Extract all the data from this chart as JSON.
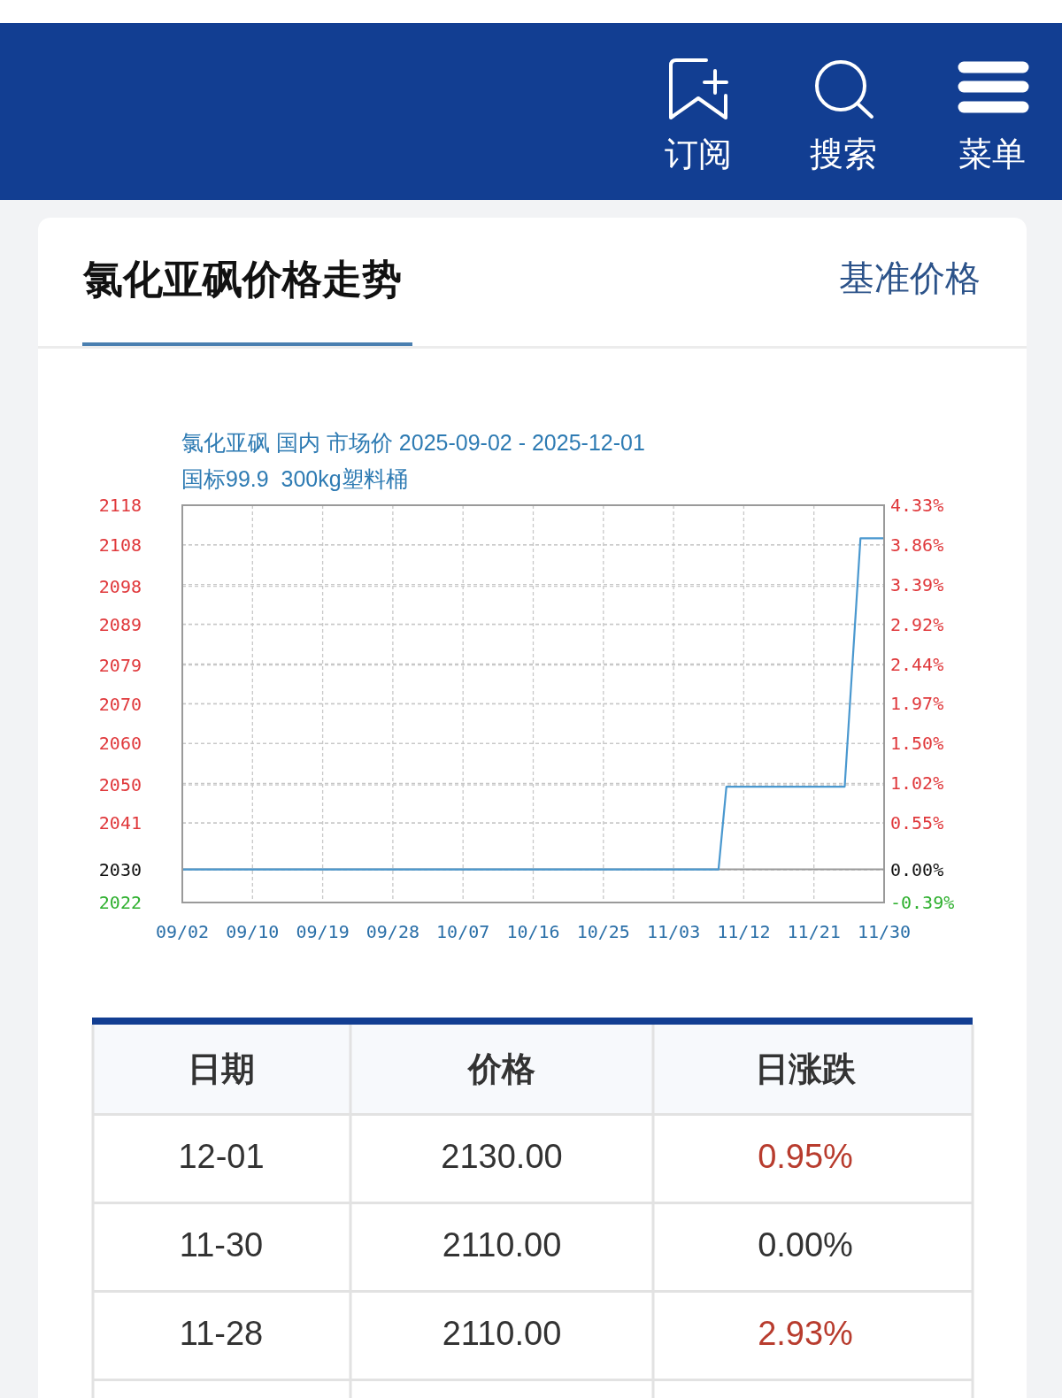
{
  "chart_data": [
    {
      "type": "line",
      "title": "氯化亚砜价格走势",
      "subtitle": "氯化亚砜 国内 市场价 2025-09-02 - 2025-12-01",
      "annotations": [
        "国标99.9  300kg塑料桶",
        "基准价格",
        "订阅",
        "搜索",
        "菜单"
      ],
      "x": [
        "2025-09-02",
        "2025-11-09",
        "2025-11-10",
        "2025-11-25",
        "2025-11-27",
        "2025-11-30"
      ],
      "values": [
        2030,
        2030,
        2050,
        2050,
        2110,
        2110
      ],
      "color": "#4a98cf",
      "xlim": [
        "2025-09-02",
        "2025-11-30"
      ],
      "xticks": [
        {
          "value": "2025-09-02",
          "label": "09/02"
        },
        {
          "value": "2025-09-10T21:36",
          "label": "09/10"
        },
        {
          "value": "2025-09-19T19:12",
          "label": "09/19"
        },
        {
          "value": "2025-09-28T16:48",
          "label": "09/28"
        },
        {
          "value": "2025-10-07T14:24",
          "label": "10/07"
        },
        {
          "value": "2025-10-16T12:00",
          "label": "10/16"
        },
        {
          "value": "2025-10-25T09:36",
          "label": "10/25"
        },
        {
          "value": "2025-11-03T07:12",
          "label": "11/03"
        },
        {
          "value": "2025-11-12T04:48",
          "label": "11/12"
        },
        {
          "value": "2025-11-21T02:24",
          "label": "11/21"
        },
        {
          "value": "2025-11-30",
          "label": "11/30"
        }
      ],
      "ylim": [
        2022,
        2118
      ],
      "yticks": [
        2022,
        2030,
        {
          "value": 2041.2,
          "label": "2041"
        },
        {
          "value": 2050.4,
          "label": "2050"
        },
        {
          "value": 2060.4,
          "label": "2060"
        },
        2070,
        {
          "value": 2079.4,
          "label": "2079"
        },
        {
          "value": 2089.2,
          "label": "2089"
        },
        {
          "value": 2098.4,
          "label": "2098"
        },
        {
          "value": 2108.4,
          "label": "2108"
        },
        2118
      ],
      "y2lim": [
        -0.39,
        4.33
      ],
      "y2ticks": [
        {
          "value": -0.39,
          "label": "-0.39%"
        },
        {
          "value": 0,
          "label": "0.00%"
        },
        {
          "value": 0.554,
          "label": "0.55%"
        },
        {
          "value": 1.024,
          "label": "1.02%"
        },
        {
          "value": 1.499,
          "label": "1.50%"
        },
        {
          "value": 1.971,
          "label": "1.97%"
        },
        {
          "value": 2.443,
          "label": "2.44%"
        },
        {
          "value": 2.916,
          "label": "2.92%"
        },
        {
          "value": 3.388,
          "label": "3.39%"
        },
        {
          "value": 3.86,
          "label": "3.86%"
        },
        {
          "value": 4.33,
          "label": "4.33%"
        }
      ],
      "ref_lines": [
        {
          "axis": "y",
          "value": 2030,
          "color": "#999999"
        }
      ],
      "grid": true
    },
    {
      "type": "other",
      "xlabel": "日期",
      "categories": [
        "12-01",
        "11-30",
        "11-28"
      ],
      "series": [
        {
          "name": "价格",
          "color": "#333333",
          "values": [
            2130,
            2110,
            2110
          ],
          "value_labels": [
            "2130.00",
            "2110.00",
            "2110.00"
          ]
        },
        {
          "name": "日涨跌",
          "values": [
            0.95,
            0,
            2.93
          ],
          "value_labels": [
            "0.95%",
            "0.00%",
            "2.93%"
          ]
        }
      ]
    }
  ]
}
